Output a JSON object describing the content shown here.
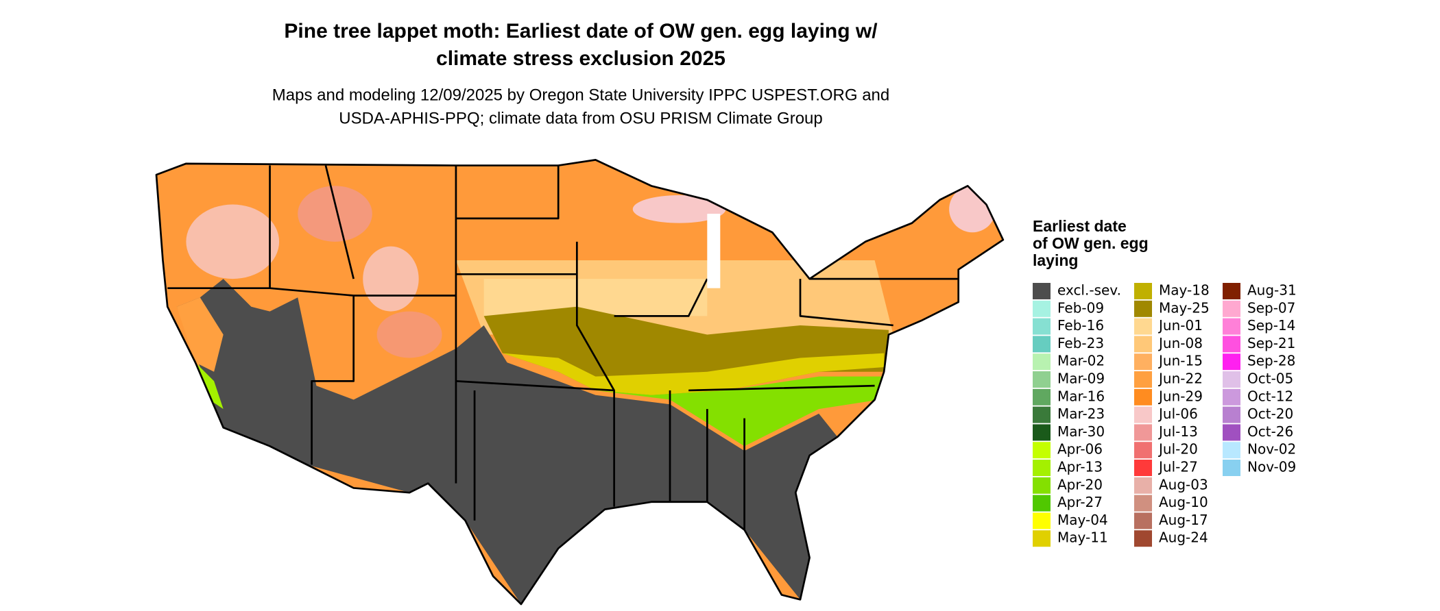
{
  "header": {
    "title": [
      "Pine tree lappet moth: Earliest date of OW gen. egg laying w/",
      "climate stress exclusion 2025"
    ],
    "subtitle": [
      "Maps and modeling 12/09/2025 by Oregon State University IPPC USPEST.ORG and",
      "USDA-APHIS-PPQ; climate data from OSU PRISM Climate Group"
    ]
  },
  "legend": {
    "title": [
      "Earliest date",
      "of OW gen. egg",
      "laying"
    ],
    "items": [
      {
        "label": "excl.-sev.",
        "color": "#4d4d4d"
      },
      {
        "label": "Feb-09",
        "color": "#a6f2e2"
      },
      {
        "label": "Feb-16",
        "color": "#86e0d2"
      },
      {
        "label": "Feb-23",
        "color": "#66cdc0"
      },
      {
        "label": "Mar-02",
        "color": "#b8f2b0"
      },
      {
        "label": "Mar-09",
        "color": "#90d090"
      },
      {
        "label": "Mar-16",
        "color": "#60a860"
      },
      {
        "label": "Mar-23",
        "color": "#3a7a3a"
      },
      {
        "label": "Mar-30",
        "color": "#1a5a1a"
      },
      {
        "label": "Apr-06",
        "color": "#c4ff00"
      },
      {
        "label": "Apr-13",
        "color": "#a4f000"
      },
      {
        "label": "Apr-20",
        "color": "#84e000"
      },
      {
        "label": "Apr-27",
        "color": "#50c800"
      },
      {
        "label": "May-04",
        "color": "#ffff00"
      },
      {
        "label": "May-11",
        "color": "#e0d000"
      },
      {
        "label": "May-18",
        "color": "#c0b000"
      },
      {
        "label": "May-25",
        "color": "#a08800"
      },
      {
        "label": "Jun-01",
        "color": "#ffd890"
      },
      {
        "label": "Jun-08",
        "color": "#ffc878"
      },
      {
        "label": "Jun-15",
        "color": "#ffb060"
      },
      {
        "label": "Jun-22",
        "color": "#ffa040"
      },
      {
        "label": "Jun-29",
        "color": "#ff8c20"
      },
      {
        "label": "Jul-06",
        "color": "#f8c8c8"
      },
      {
        "label": "Jul-13",
        "color": "#f09898"
      },
      {
        "label": "Jul-20",
        "color": "#f07070"
      },
      {
        "label": "Jul-27",
        "color": "#ff3a3a"
      },
      {
        "label": "Aug-03",
        "color": "#e8b0a8"
      },
      {
        "label": "Aug-10",
        "color": "#d09080"
      },
      {
        "label": "Aug-17",
        "color": "#b87060"
      },
      {
        "label": "Aug-24",
        "color": "#a04830"
      },
      {
        "label": "Aug-31",
        "color": "#802000"
      },
      {
        "label": "Sep-07",
        "color": "#ffa8d0"
      },
      {
        "label": "Sep-14",
        "color": "#ff80d8"
      },
      {
        "label": "Sep-21",
        "color": "#ff50e0"
      },
      {
        "label": "Sep-28",
        "color": "#ff20f0"
      },
      {
        "label": "Oct-05",
        "color": "#e0c0e8"
      },
      {
        "label": "Oct-12",
        "color": "#cc99dd"
      },
      {
        "label": "Oct-20",
        "color": "#b880d0"
      },
      {
        "label": "Oct-26",
        "color": "#a050c0"
      },
      {
        "label": "Nov-02",
        "color": "#b8e8ff"
      },
      {
        "label": "Nov-09",
        "color": "#88d0f0"
      }
    ]
  }
}
